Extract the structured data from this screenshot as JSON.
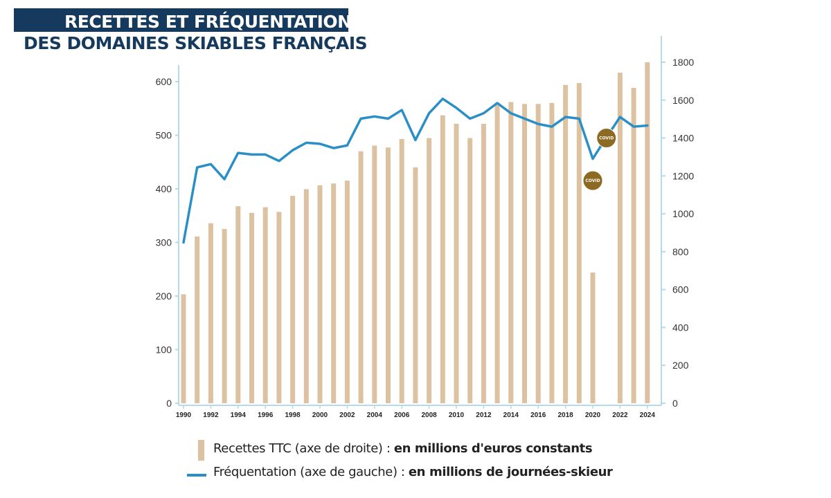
{
  "title": {
    "line1": "RECETTES ET FRÉQUENTATION",
    "line2": "DES DOMAINES SKIABLES FRANÇAIS"
  },
  "chart_data": {
    "type": "bar",
    "x": [
      1990,
      1991,
      1992,
      1993,
      1994,
      1995,
      1996,
      1997,
      1998,
      1999,
      2000,
      2001,
      2002,
      2003,
      2004,
      2005,
      2006,
      2007,
      2008,
      2009,
      2010,
      2011,
      2012,
      2013,
      2014,
      2015,
      2016,
      2017,
      2018,
      2019,
      2020,
      2021,
      2022,
      2023,
      2024
    ],
    "x_tick_labels": [
      "1990",
      "1992",
      "1994",
      "1996",
      "1998",
      "2000",
      "2002",
      "2004",
      "2006",
      "2008",
      "2010",
      "2012",
      "2014",
      "2016",
      "2018",
      "2020",
      "2022",
      "2024"
    ],
    "left_axis": {
      "ticks": [
        "0",
        "100",
        "200",
        "300",
        "400",
        "500",
        "600"
      ],
      "range": [
        0,
        650
      ]
    },
    "right_axis": {
      "ticks": [
        "0",
        "200",
        "400",
        "600",
        "800",
        "1000",
        "1200",
        "1400",
        "1600",
        "1800"
      ],
      "range": [
        0,
        1800
      ]
    },
    "series": [
      {
        "name": "Recettes TTC (axe de droite) : en millions d'euros constants",
        "type": "bar",
        "axis": "right",
        "color": "#ddc2a2",
        "values": [
          575,
          880,
          950,
          920,
          1040,
          1005,
          1035,
          1010,
          1095,
          1130,
          1150,
          1160,
          1175,
          1330,
          1360,
          1350,
          1395,
          1245,
          1400,
          1520,
          1475,
          1400,
          1475,
          1585,
          1590,
          1580,
          1580,
          1585,
          1680,
          1690,
          690,
          null,
          1745,
          1665,
          1800
        ]
      },
      {
        "name": "Fréquentation (axe de gauche) : en millions de journées-skieur",
        "type": "line",
        "axis": "left",
        "color": "#2b8fc7",
        "values": [
          300,
          440,
          446,
          418,
          467,
          464,
          464,
          452,
          472,
          486,
          484,
          476,
          481,
          531,
          535,
          531,
          547,
          491,
          541,
          568,
          551,
          531,
          541,
          560,
          541,
          531,
          521,
          516,
          534,
          531,
          456,
          496,
          534,
          516,
          518
        ]
      }
    ],
    "annotations": [
      {
        "text": "COVID",
        "year": 2020,
        "value": 1175,
        "axis": "right"
      },
      {
        "text": "COVID",
        "year": 2021,
        "value": 1400,
        "axis": "right"
      }
    ]
  },
  "legend": {
    "bars_prefix": "Recettes TTC (axe de droite) : ",
    "bars_bold": "en millions d'euros constants",
    "line_prefix": "Fréquentation (axe de gauche) : ",
    "line_bold": "en millions de journées-skieur"
  },
  "colors": {
    "title_band": "#163a5e",
    "bars": "#ddc2a2",
    "line": "#2b8fc7",
    "axis": "#b3d9eb",
    "covid_badge": "#8c6a22"
  }
}
